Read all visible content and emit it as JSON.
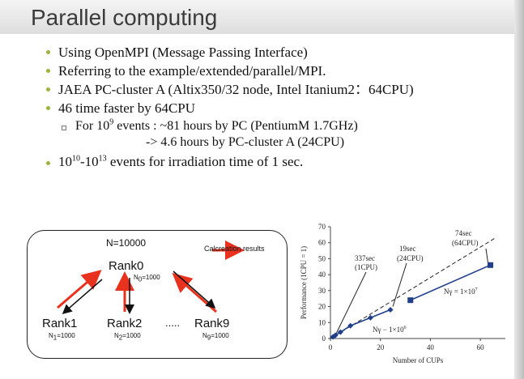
{
  "title": "Parallel computing",
  "bullets": [
    {
      "text": "Using OpenMPI (Message Passing Interface)"
    },
    {
      "text": "Referring to the example/extended/parallel/MPI."
    },
    {
      "text": "JAEA PC-cluster A (Altix350/32 node, Intel Itanium2：64CPU)"
    },
    {
      "text": "46 time faster by 64CPU"
    }
  ],
  "sub_bullet": {
    "prefix": "For 10",
    "sup": "9",
    "rest": " events : ~81 hours  by PC (PentiumM 1.7GHz)",
    "line2": "-> 4.6 hours by PC-cluster A (24CPU)"
  },
  "last_bullet": {
    "a": "10",
    "a_sup": "10",
    "b": "-10",
    "b_sup": "13",
    "rest": " events for irradiation time of 1 sec."
  },
  "diagram": {
    "n_total": "N=10000",
    "legend": "Calcreation results",
    "rank0": "Rank0",
    "rank0_n": "N",
    "rank0_n_sub": "0",
    "rank0_n_val": "=1000",
    "ranks": [
      {
        "label": "Rank1",
        "n": "N",
        "sub": "1",
        "val": "=1000"
      },
      {
        "label": "Rank2",
        "n": "N",
        "sub": "2",
        "val": "=1000"
      },
      {
        "label": "Rank9",
        "n": "N",
        "sub": "9",
        "val": "=1000"
      }
    ],
    "ellipsis": ".....",
    "arrow_color": "#e8321e"
  },
  "chart_data": {
    "type": "line",
    "ylabel": "Performance (1CPU = 1)",
    "xlabel": "Number of CUPs",
    "xlim": [
      0,
      70
    ],
    "ylim": [
      0,
      70
    ],
    "xticks": [
      "0",
      "20",
      "40",
      "60"
    ],
    "yticks": [
      "0",
      "10",
      "20",
      "30",
      "40",
      "50",
      "60",
      "70"
    ],
    "series": [
      {
        "name": "Nγ = 1×10^6",
        "marker": "diamond",
        "x": [
          1,
          2,
          4,
          8,
          16,
          24
        ],
        "y": [
          1,
          2,
          4,
          8,
          13,
          18
        ]
      },
      {
        "name": "Nγ = 1×10^7",
        "marker": "square",
        "x": [
          32,
          64
        ],
        "y": [
          24,
          46
        ]
      }
    ],
    "ideal_line": {
      "x": [
        0,
        66
      ],
      "y": [
        0,
        63
      ]
    },
    "annotations": [
      {
        "text": "337sec",
        "text2": "(1CPU)"
      },
      {
        "text": "19sec",
        "text2": "(24CPU)"
      },
      {
        "text": "74sec",
        "text2": "(64CPU)"
      }
    ],
    "series_label_1": "Nγ − 1×10",
    "series_label_1_sup": "6",
    "series_label_2": "Nγ = 1×10",
    "series_label_2_sup": "7"
  },
  "colors": {
    "bullet": "#9bb53a",
    "series": "#1f3f8a"
  }
}
